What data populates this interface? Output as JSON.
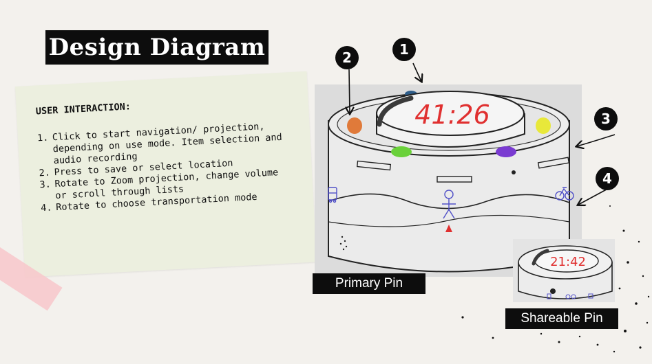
{
  "title": "Design Diagram",
  "note": {
    "heading": "USER INTERACTION:",
    "items": [
      {
        "num": "1.",
        "text": "Click to start navigation/ projection, depending on use mode. Item selection and audio recording"
      },
      {
        "num": "2.",
        "text": "Press to save or select location"
      },
      {
        "num": "3.",
        "text": "Rotate to Zoom projection, change volume or scroll through lists"
      },
      {
        "num": "4.",
        "text": "Rotate to choose transportation mode"
      }
    ]
  },
  "device": {
    "primary_time": "41:26",
    "shareable_time": "21:42",
    "button_colors": [
      "#2e5d8a",
      "#b33bd1",
      "#e07a3a",
      "#e8e83a",
      "#6ad13a",
      "#7a3bd1"
    ]
  },
  "markers": [
    "1",
    "2",
    "3",
    "4"
  ],
  "labels": {
    "primary": "Primary Pin",
    "shareable": "Shareable Pin"
  },
  "colors": {
    "paper": "#f3f1ed",
    "note": "#ecefdf",
    "tape": "#f7c9cc",
    "label_bg": "#0d0d0d",
    "time_red": "#e03030",
    "icon_blue": "#5050c8"
  },
  "icons": [
    "bus-icon",
    "stick-figure-icon",
    "bicycle-icon",
    "arrow-up-icon"
  ]
}
